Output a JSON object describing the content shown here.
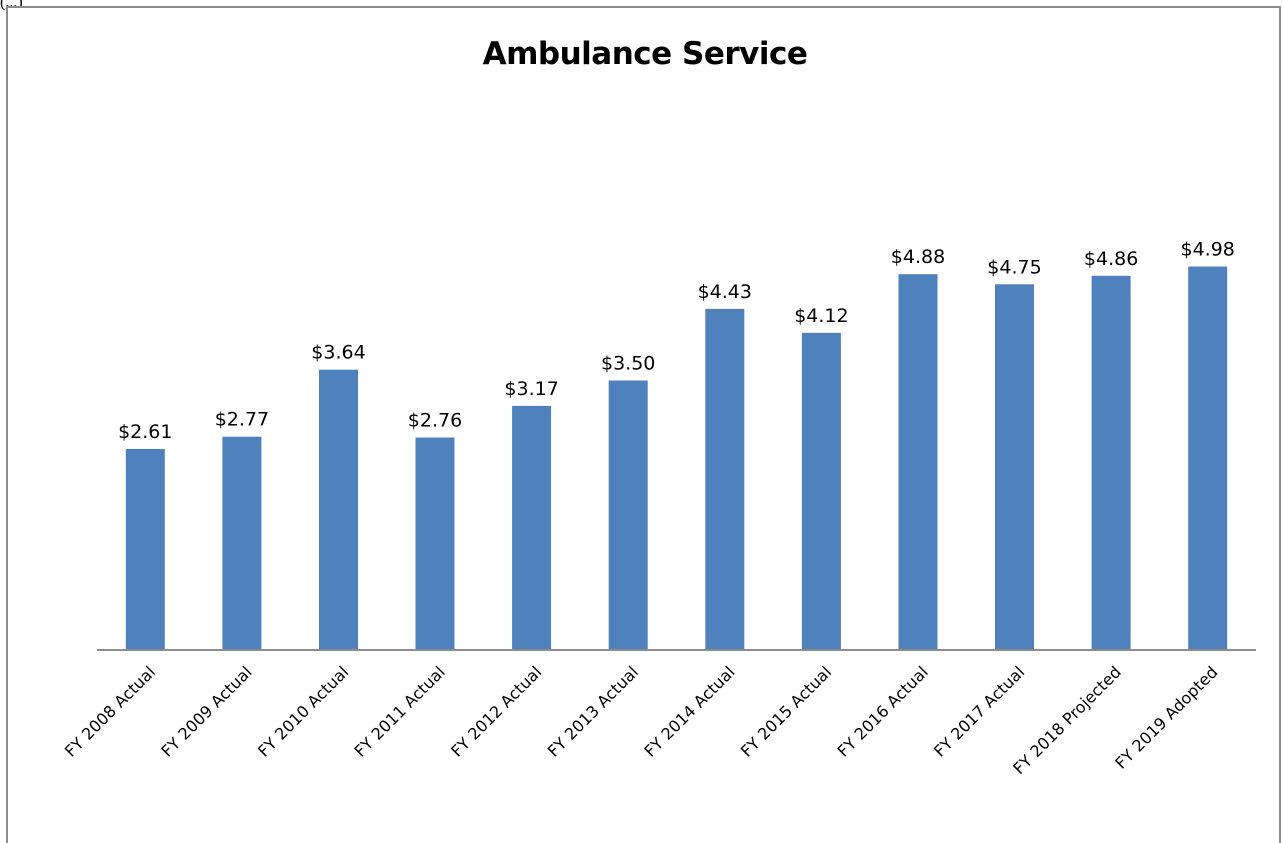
{
  "page": {
    "top_fragment": "(...)"
  },
  "chart_data": {
    "type": "bar",
    "title": "Ambulance Service",
    "xlabel": "",
    "ylabel": "",
    "categories": [
      "FY 2008 Actual",
      "FY 2009 Actual",
      "FY 2010 Actual",
      "FY 2011 Actual",
      "FY 2012 Actual",
      "FY 2013 Actual",
      "FY 2014 Actual",
      "FY 2015 Actual",
      "FY 2016 Actual",
      "FY 2017 Actual",
      "FY 2018 Projected",
      "FY 2019 Adopted"
    ],
    "values": [
      2.61,
      2.77,
      3.64,
      2.76,
      3.17,
      3.5,
      4.43,
      4.12,
      4.88,
      4.75,
      4.86,
      4.98
    ],
    "data_labels": [
      "$2.61",
      "$2.77",
      "$3.64",
      "$2.76",
      "$3.17",
      "$3.50",
      "$4.43",
      "$4.12",
      "$4.88",
      "$4.75",
      "$4.86",
      "$4.98"
    ],
    "ylim": [
      0,
      6
    ],
    "grid": false,
    "legend": "none",
    "bar_color": "#4f81bd",
    "axis_color": "#8c8c8c"
  }
}
